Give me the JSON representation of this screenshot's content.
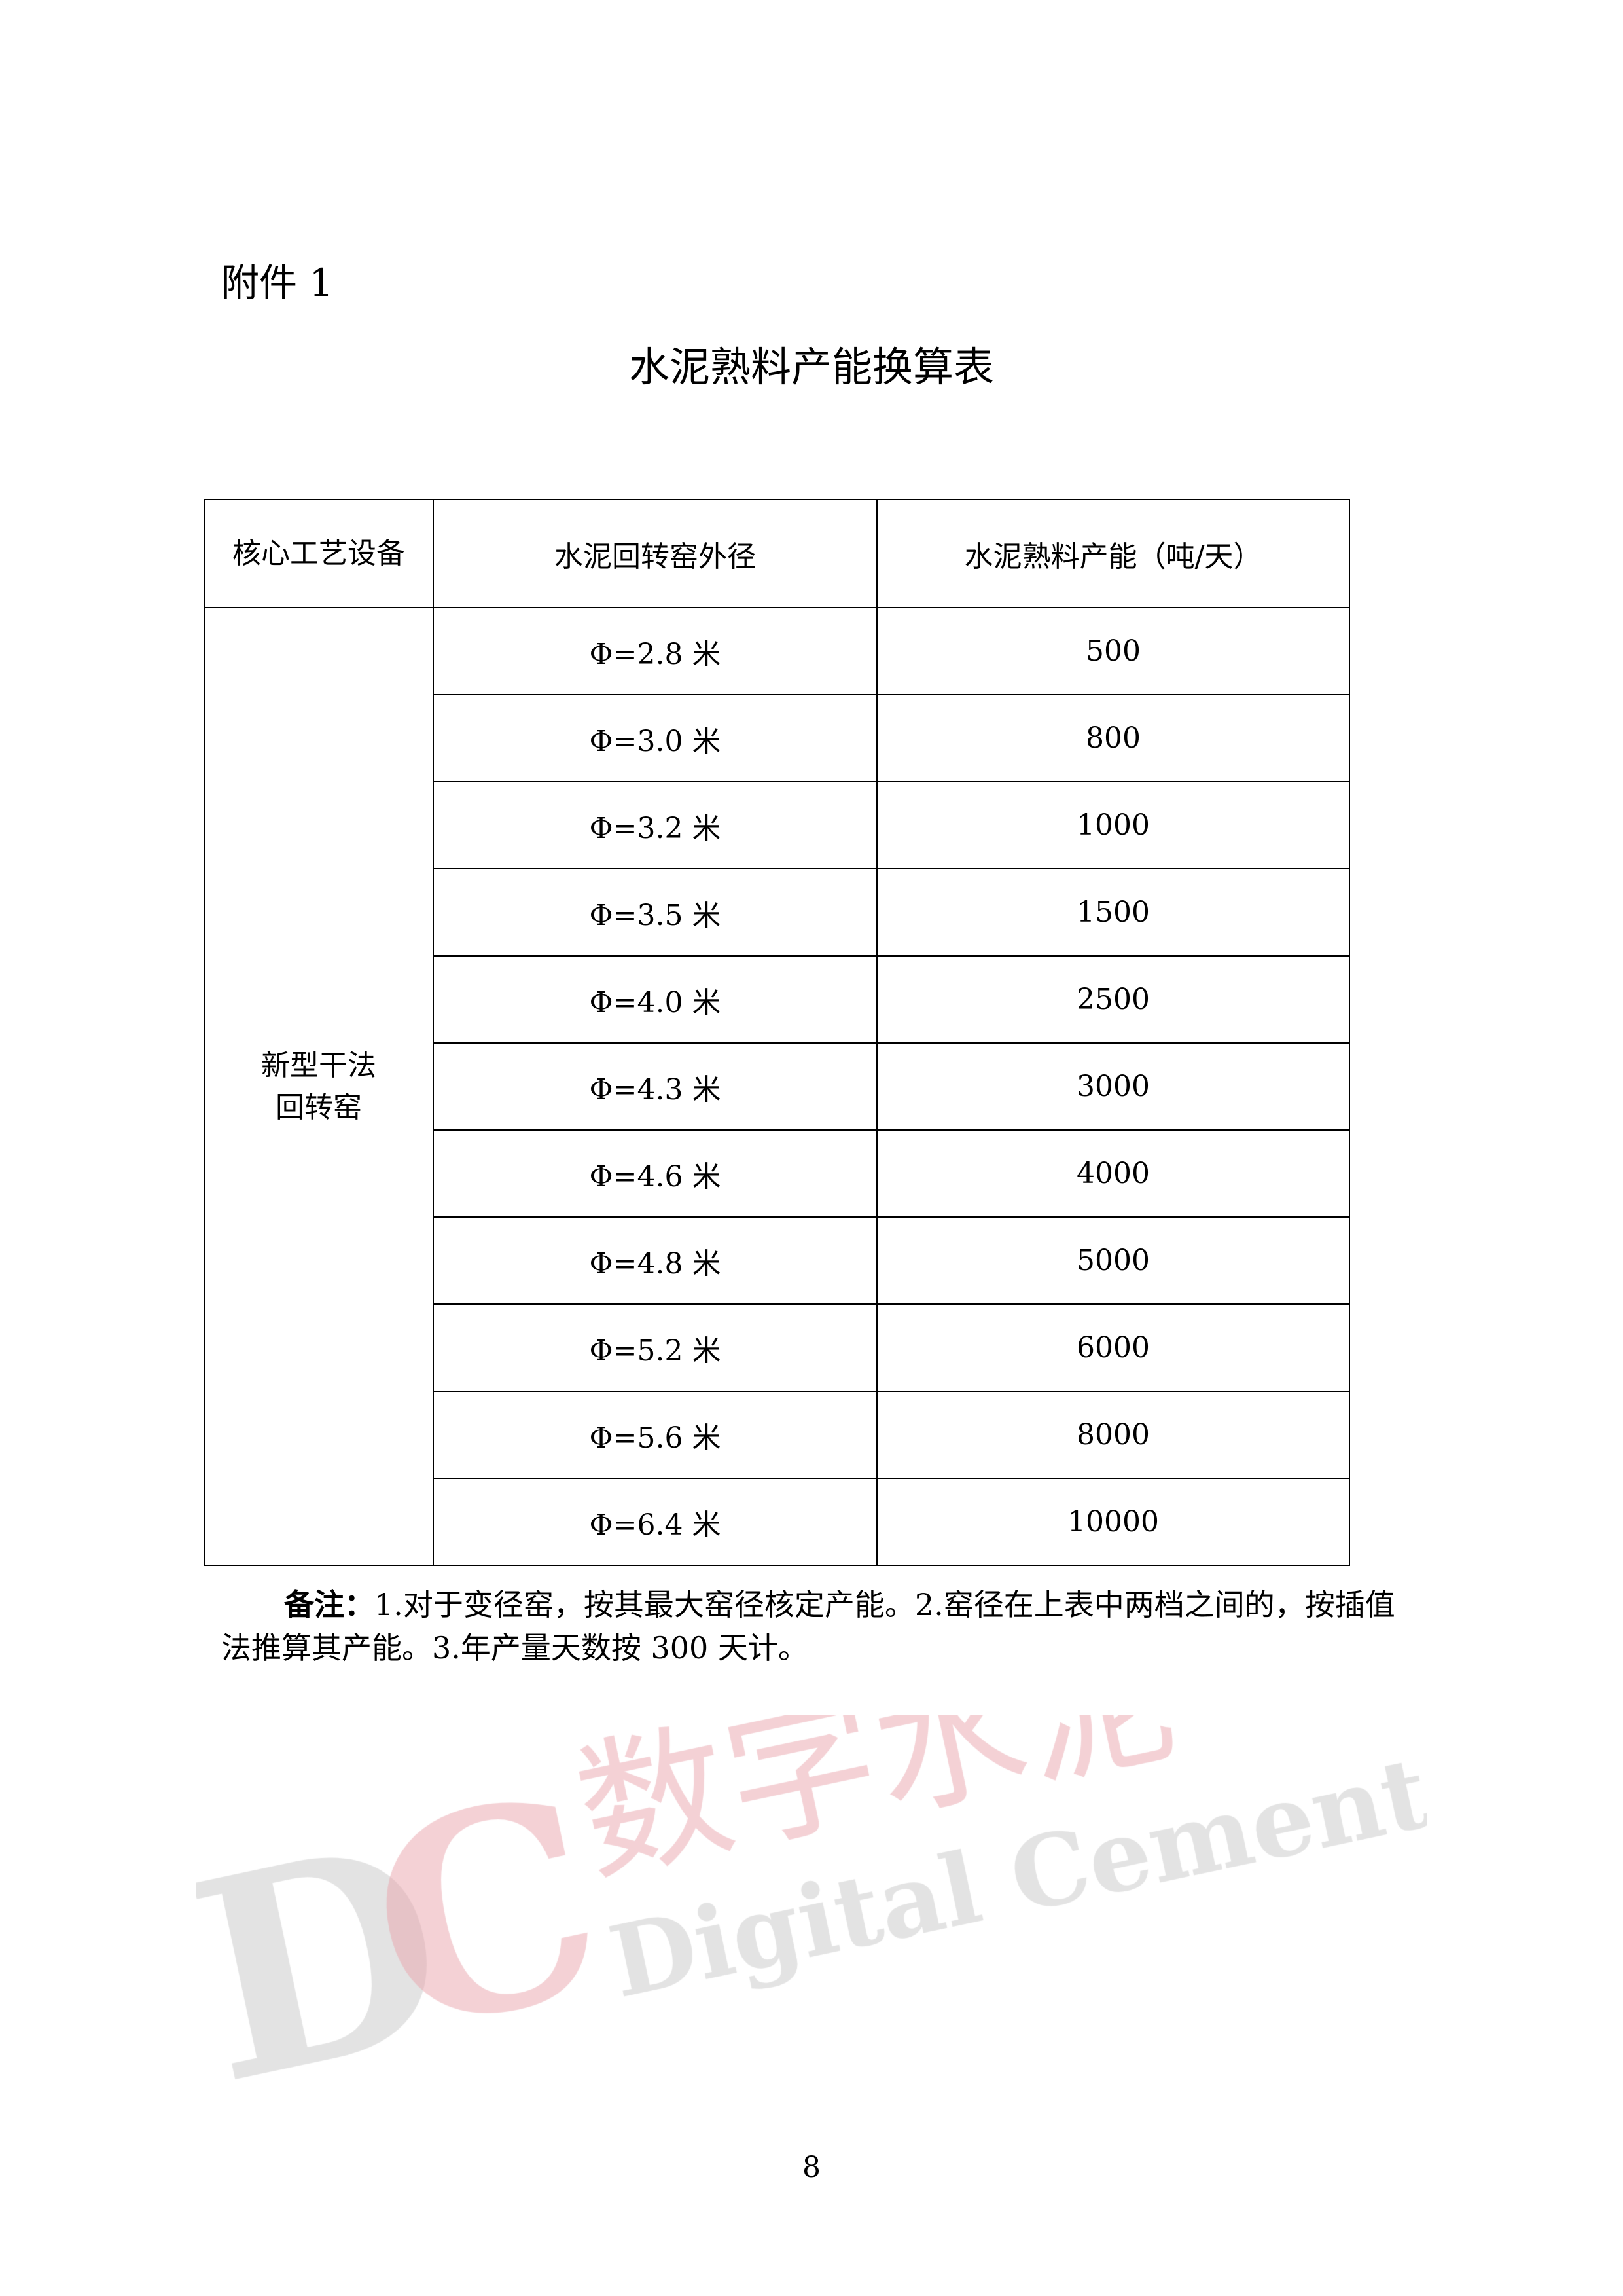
{
  "attachment_label": "附件 1",
  "title": "水泥熟料产能换算表",
  "table": {
    "headers": [
      "核心工艺设备",
      "水泥回转窑外径",
      "水泥熟料产能（吨/天）"
    ],
    "equipment": [
      "新型干法",
      "回转窑"
    ],
    "rows": [
      {
        "diameter": "Φ=2.8 米",
        "capacity": "500"
      },
      {
        "diameter": "Φ=3.0 米",
        "capacity": "800"
      },
      {
        "diameter": "Φ=3.2 米",
        "capacity": "1000"
      },
      {
        "diameter": "Φ=3.5 米",
        "capacity": "1500"
      },
      {
        "diameter": "Φ=4.0 米",
        "capacity": "2500"
      },
      {
        "diameter": "Φ=4.3 米",
        "capacity": "3000"
      },
      {
        "diameter": "Φ=4.6 米",
        "capacity": "4000"
      },
      {
        "diameter": "Φ=4.8 米",
        "capacity": "5000"
      },
      {
        "diameter": "Φ=5.2 米",
        "capacity": "6000"
      },
      {
        "diameter": "Φ=5.6 米",
        "capacity": "8000"
      },
      {
        "diameter": "Φ=6.4 米",
        "capacity": "10000"
      }
    ]
  },
  "note": {
    "label": "备注：",
    "text": "1.对于变径窑，按其最大窑径核定产能。2.窑径在上表中两档之间的，按插值法推算其产能。3.年产量天数按 300 天计。"
  },
  "page_number": "8",
  "watermark": {
    "logo": "DC",
    "cn": "数字水泥",
    "en": "Digital Cement",
    "pink": "#e9a3ab",
    "grey": "#c8c8c8"
  }
}
